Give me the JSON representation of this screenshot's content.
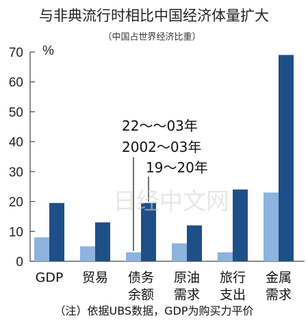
{
  "chart_data": {
    "type": "bar",
    "title": "与非典流行时相比中国经济体量扩大",
    "subtitle": "（中国占世界经济比重）",
    "unit": "%",
    "categories": [
      {
        "lines": [
          "GDP"
        ]
      },
      {
        "lines": [
          "贸易"
        ]
      },
      {
        "lines": [
          "债务",
          "余额"
        ]
      },
      {
        "lines": [
          "原油",
          "需求"
        ]
      },
      {
        "lines": [
          "旅行",
          "支出"
        ]
      },
      {
        "lines": [
          "金属",
          "需求"
        ]
      }
    ],
    "series": [
      {
        "name": "2002～03年",
        "color": "#8db3de",
        "values": [
          8,
          5,
          3,
          6,
          3,
          23
        ]
      },
      {
        "name": "19～20年",
        "color": "#1e4f88",
        "values": [
          19.5,
          13,
          19.5,
          12,
          24,
          69
        ]
      }
    ],
    "legend_overlap_text": "22～～03年",
    "ylim": [
      0,
      70
    ],
    "yticks": [
      0,
      10,
      20,
      30,
      40,
      50,
      60,
      70
    ],
    "grid": false,
    "legend_position": "annotation above 债务余额 bars",
    "footnote": "（注）依据UBS数据，GDP为购买力平价",
    "watermark": "日经中文网"
  }
}
